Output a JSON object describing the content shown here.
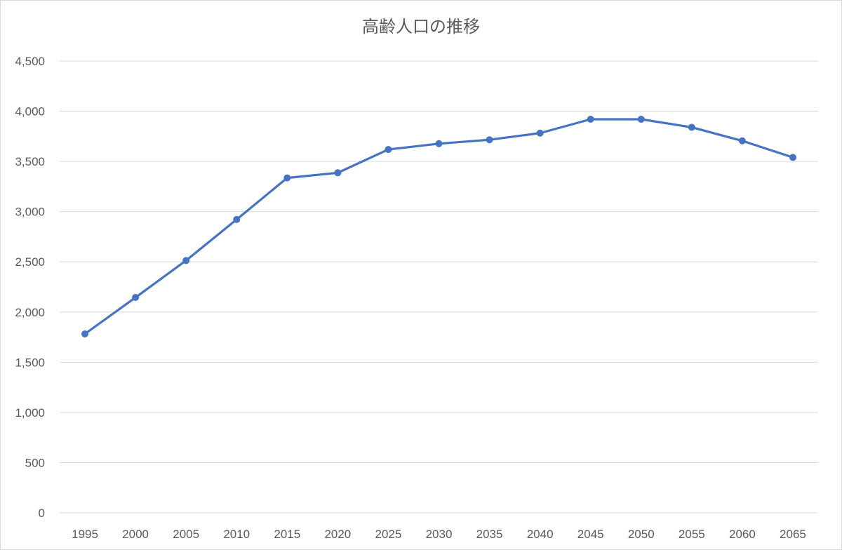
{
  "chart_data": {
    "type": "line",
    "title": "高齢人口の推移",
    "x": [
      "1995",
      "2000",
      "2005",
      "2010",
      "2015",
      "2020",
      "2025",
      "2030",
      "2035",
      "2040",
      "2045",
      "2050",
      "2055",
      "2060",
      "2065"
    ],
    "series": [
      {
        "values": [
          1782,
          2145,
          2513,
          2922,
          3336,
          3387,
          3619,
          3677,
          3716,
          3782,
          3920,
          3920,
          3840,
          3705,
          3540
        ],
        "color": "#4472c4"
      }
    ],
    "ylim": [
      0,
      4500
    ],
    "y_ticks": [
      0,
      500,
      1000,
      1500,
      2000,
      2500,
      3000,
      3500,
      4000,
      4500
    ],
    "y_tick_labels": [
      "0",
      "500",
      "1,000",
      "1,500",
      "2,000",
      "2,500",
      "3,000",
      "3,500",
      "4,000",
      "4,500"
    ],
    "grid": true,
    "legend": "none",
    "marker": "circle"
  }
}
